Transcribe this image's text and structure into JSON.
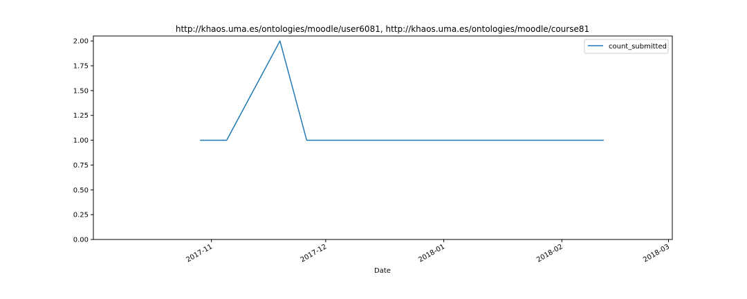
{
  "chart_data": {
    "type": "line",
    "title": "http://khaos.uma.es/ontologies/moodle/user6081, http://khaos.uma.es/ontologies/moodle/course81",
    "xlabel": "Date",
    "ylabel": "",
    "x_axis_type": "date",
    "xlim": [
      "2017-10-01",
      "2018-03-02"
    ],
    "ylim": [
      0,
      2.05
    ],
    "x_ticks": [
      "2017-11",
      "2017-12",
      "2018-01",
      "2018-02",
      "2018-03"
    ],
    "x_tick_dates": [
      "2017-11-01",
      "2017-12-01",
      "2018-01-01",
      "2018-02-01",
      "2018-03-01"
    ],
    "y_ticks": [
      "0.00",
      "0.25",
      "0.50",
      "0.75",
      "1.00",
      "1.25",
      "1.50",
      "1.75",
      "2.00"
    ],
    "y_tick_values": [
      0,
      0.25,
      0.5,
      0.75,
      1.0,
      1.25,
      1.5,
      1.75,
      2.0
    ],
    "grid": false,
    "legend_position": "upper right",
    "series": [
      {
        "name": "count_submitted",
        "color": "#1f77b4",
        "x": [
          "2017-10-29",
          "2017-11-05",
          "2017-11-19",
          "2017-11-26",
          "2018-02-12"
        ],
        "y": [
          1,
          1,
          2,
          1,
          1
        ]
      }
    ]
  }
}
